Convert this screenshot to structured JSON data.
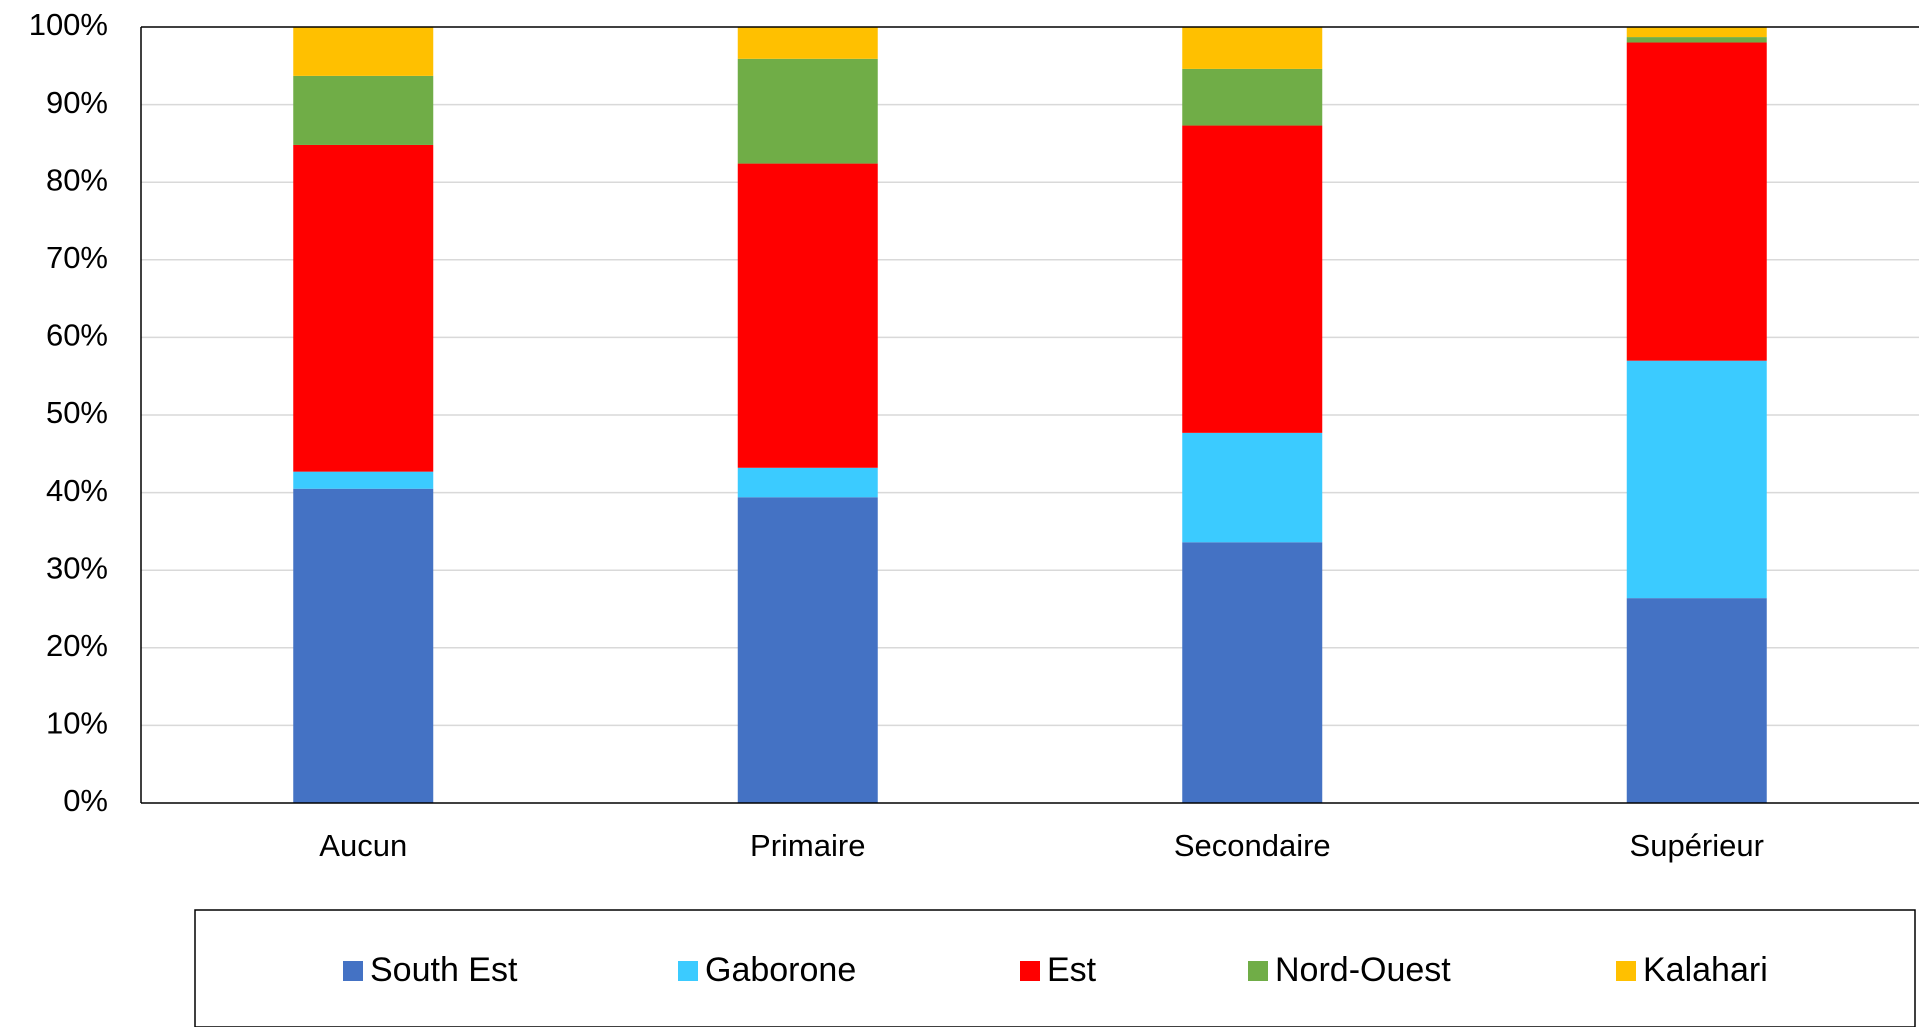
{
  "chart_data": {
    "type": "bar",
    "stacked": true,
    "normalized": true,
    "categories": [
      "Aucun",
      "Primaire",
      "Secondaire",
      "Supérieur"
    ],
    "series": [
      {
        "name": "South Est",
        "color": "#4472C4",
        "values": [
          40.5,
          39.4,
          33.6,
          26.4
        ]
      },
      {
        "name": "Gaborone",
        "color": "#3BCBFF",
        "values": [
          2.2,
          3.8,
          14.1,
          30.6
        ]
      },
      {
        "name": "Est",
        "color": "#FF0000",
        "values": [
          42.1,
          39.2,
          39.6,
          41.0
        ]
      },
      {
        "name": "Nord-Ouest",
        "color": "#70AD47",
        "values": [
          8.9,
          13.5,
          7.3,
          0.7
        ]
      },
      {
        "name": "Kalahari",
        "color": "#FFC000",
        "values": [
          6.3,
          4.1,
          5.4,
          1.3
        ]
      }
    ],
    "y_ticks": [
      "0%",
      "10%",
      "20%",
      "30%",
      "40%",
      "50%",
      "60%",
      "70%",
      "80%",
      "90%",
      "100%"
    ],
    "ylim": [
      0,
      100
    ],
    "grid": true,
    "legend_position": "bottom"
  }
}
